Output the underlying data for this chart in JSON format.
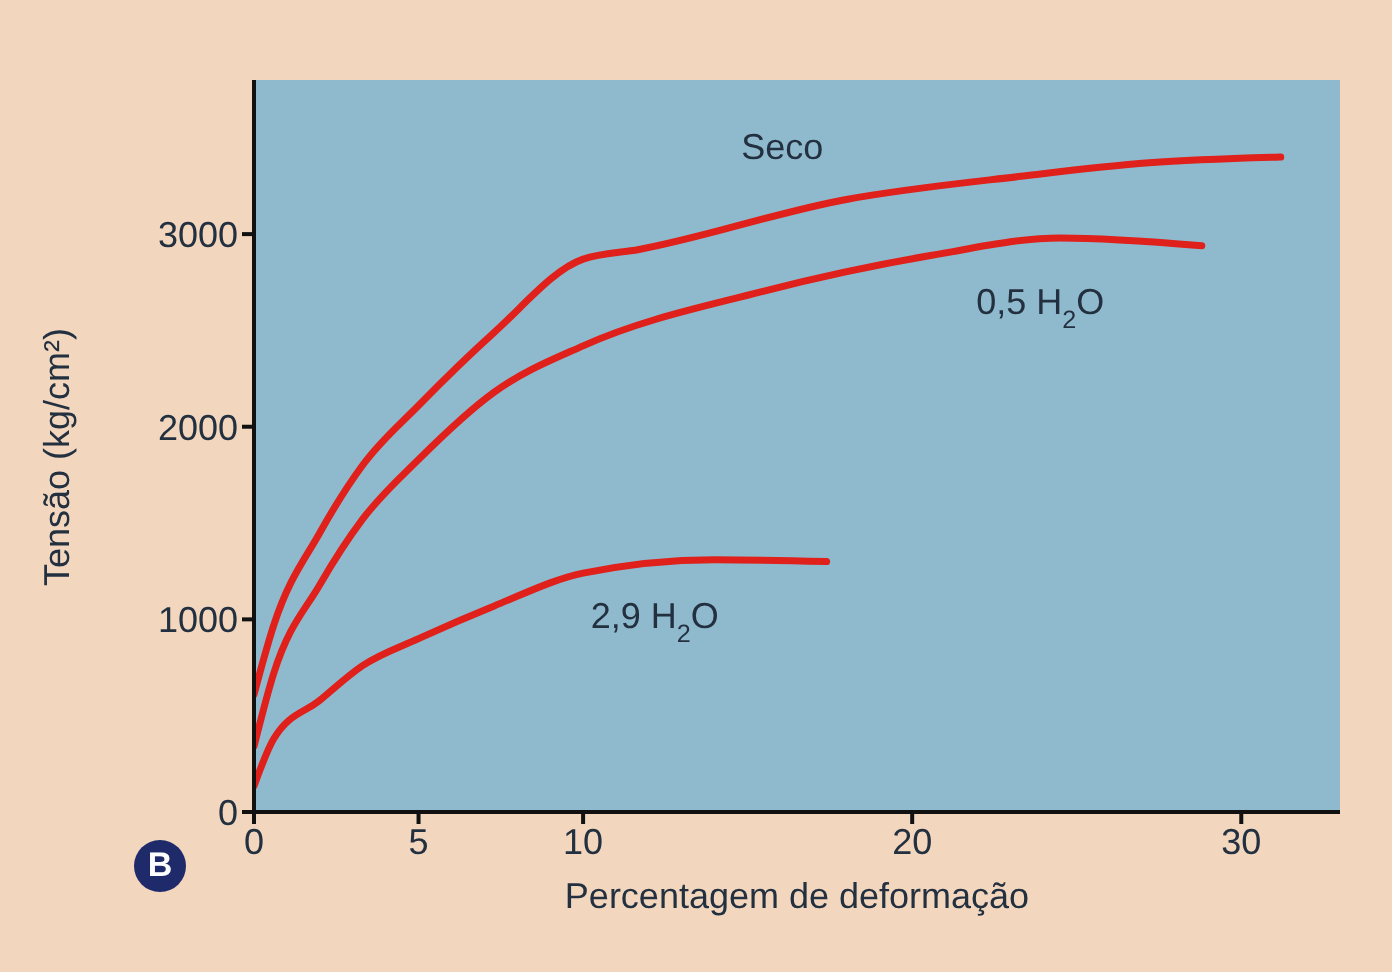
{
  "chart_data": {
    "type": "line",
    "xlabel": "Percentagem de deformação",
    "ylabel": "Tensão (kg/cm²)",
    "xlim": [
      0,
      33
    ],
    "xticks": [
      0,
      5,
      10,
      20,
      30
    ],
    "ylim": [
      0,
      3800
    ],
    "yticks": [
      0,
      1000,
      2000,
      3000
    ],
    "grid": false,
    "legend": false,
    "marker": "none",
    "line_style": "solid",
    "annotations": [
      "B"
    ],
    "series": [
      {
        "name": "Seco",
        "color": "#e0201b",
        "x": [
          0,
          0.6,
          2,
          3.3,
          5,
          7.3,
          10,
          11.7,
          18,
          23.3,
          27.2,
          31.2
        ],
        "values": [
          610,
          970,
          1450,
          1800,
          2110,
          2490,
          2870,
          2920,
          3180,
          3300,
          3370,
          3400
        ]
      },
      {
        "name": "0,5 H$_{2}$O",
        "color": "#e0201b",
        "x": [
          0,
          0.6,
          2,
          3.3,
          5,
          7.3,
          10,
          15.4,
          20.6,
          24.5,
          28.8
        ],
        "values": [
          340,
          720,
          1180,
          1520,
          1830,
          2180,
          2420,
          2700,
          2890,
          2980,
          2940
        ]
      },
      {
        "name": "2,9 H$_{2}$O",
        "color": "#e0201b",
        "x": [
          0,
          0.6,
          2,
          3.3,
          5,
          7.3,
          10,
          14,
          17.4
        ],
        "values": [
          135,
          380,
          580,
          760,
          900,
          1070,
          1240,
          1310,
          1300
        ]
      }
    ]
  }
}
